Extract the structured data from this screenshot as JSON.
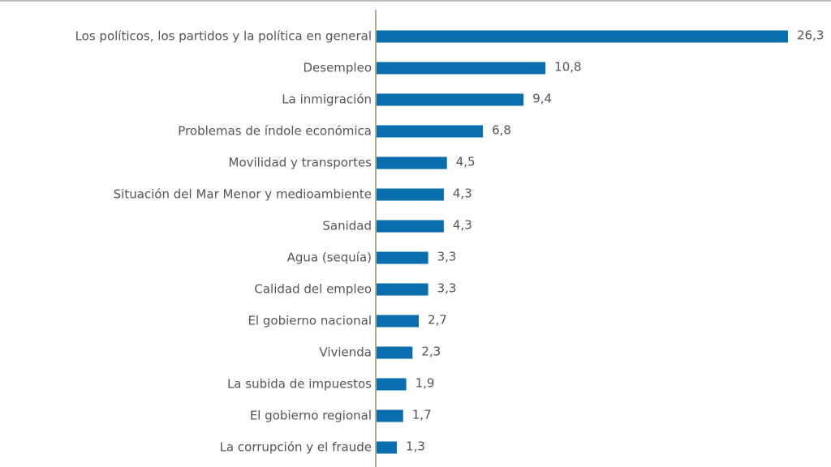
{
  "chart_data": {
    "type": "bar",
    "orientation": "horizontal",
    "color": "#0a6fae",
    "categories": [
      "Los políticos, los partidos y la política en general",
      "Desempleo",
      "La inmigración",
      "Problemas de índole económica",
      "Movilidad y transportes",
      "Situación del Mar Menor y medioambiente",
      "Sanidad",
      "Agua (sequía)",
      "Calidad del empleo",
      "El gobierno nacional",
      "Vivienda",
      "La subida de impuestos",
      "El gobierno regional",
      "La corrupción y el fraude"
    ],
    "values": [
      26.3,
      10.8,
      9.4,
      6.8,
      4.5,
      4.3,
      4.3,
      3.3,
      3.3,
      2.7,
      2.3,
      1.9,
      1.7,
      1.3
    ],
    "value_labels": [
      "26,3",
      "10,8",
      "9,4",
      "6,8",
      "4,5",
      "4,3",
      "4,3",
      "3,3",
      "3,3",
      "2,7",
      "2,3",
      "1,9",
      "1,7",
      "1,3"
    ]
  }
}
